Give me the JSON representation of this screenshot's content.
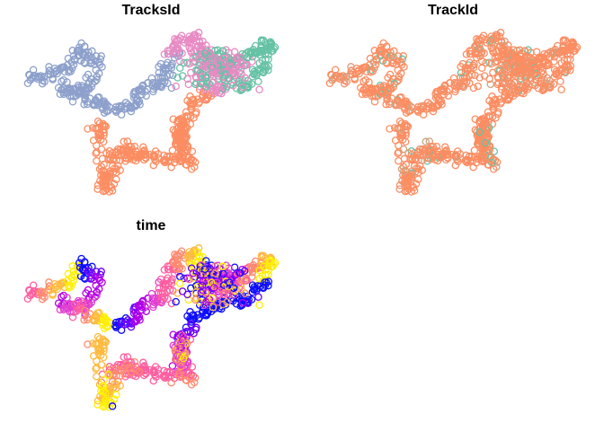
{
  "chart_data": [
    {
      "type": "scatter",
      "title": "TracksId",
      "color_by": "TracksId",
      "palette": [
        "#66c2a5",
        "#fc8d62",
        "#8da0cb",
        "#e78ac3"
      ],
      "axes": "none",
      "grid": false,
      "legend": "none",
      "marker": "open-circle"
    },
    {
      "type": "scatter",
      "title": "TrackId",
      "color_by": "TrackId",
      "palette": [
        "#fc8d62",
        "#e5987a",
        "#c9a47f",
        "#66c2a5"
      ],
      "axes": "none",
      "grid": false,
      "legend": "none",
      "marker": "open-circle"
    },
    {
      "type": "scatter",
      "title": "time",
      "color_by": "time",
      "palette": [
        "#0d0dff",
        "#6a00ff",
        "#b000e8",
        "#e040d0",
        "#ff5fa0",
        "#ff8a70",
        "#ffbb40",
        "#fff000"
      ],
      "axes": "none",
      "grid": false,
      "legend": "none",
      "marker": "open-circle"
    }
  ]
}
